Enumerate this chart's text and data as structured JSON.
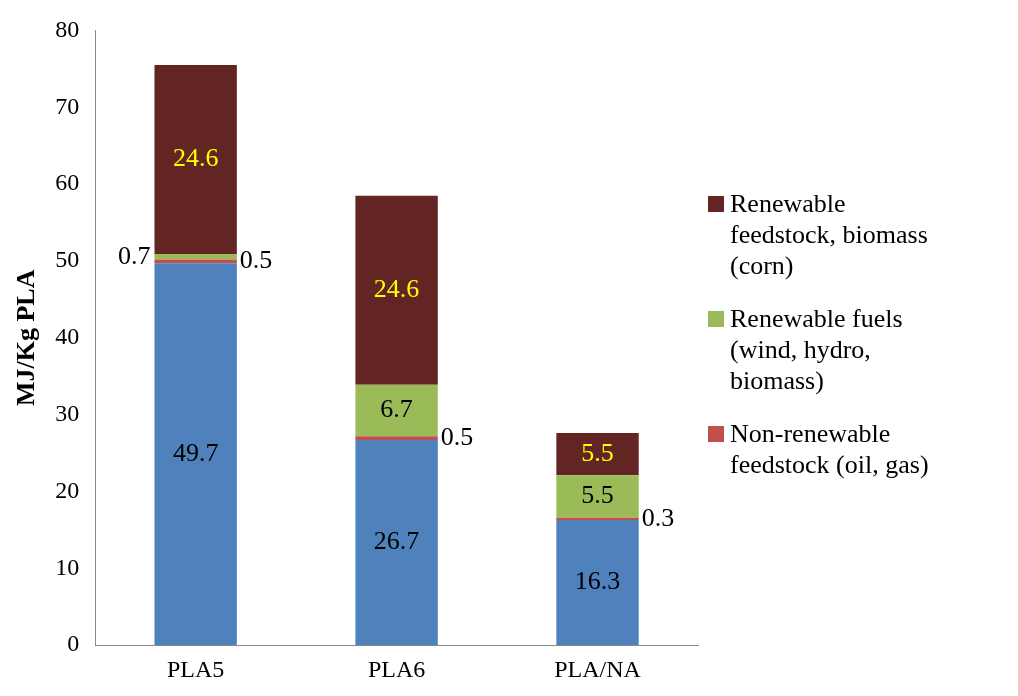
{
  "chart_data": {
    "type": "bar",
    "stacked": true,
    "ylabel": "MJ/Kg PLA",
    "categories": [
      "PLA5",
      "PLA6",
      "PLA/NA"
    ],
    "series": [
      {
        "color": "#4f81bd",
        "values": [
          49.7,
          26.7,
          16.3
        ]
      },
      {
        "name": "Non-renewable feedstock (oil, gas)",
        "color": "#c0504d",
        "values": [
          0.5,
          0.5,
          0.3
        ]
      },
      {
        "name": "Renewable fuels (wind, hydro, biomass)",
        "color": "#9bbb59",
        "values": [
          0.7,
          6.7,
          5.5
        ]
      },
      {
        "name": "Renewable feedstock, biomass (corn)",
        "color": "#632523",
        "values": [
          24.6,
          24.6,
          5.5
        ]
      }
    ],
    "ylim": [
      0,
      80
    ],
    "yticks": [
      0,
      10,
      20,
      30,
      40,
      50,
      60,
      70,
      80
    ],
    "grid": false,
    "legend": "right",
    "data_labels": true
  }
}
